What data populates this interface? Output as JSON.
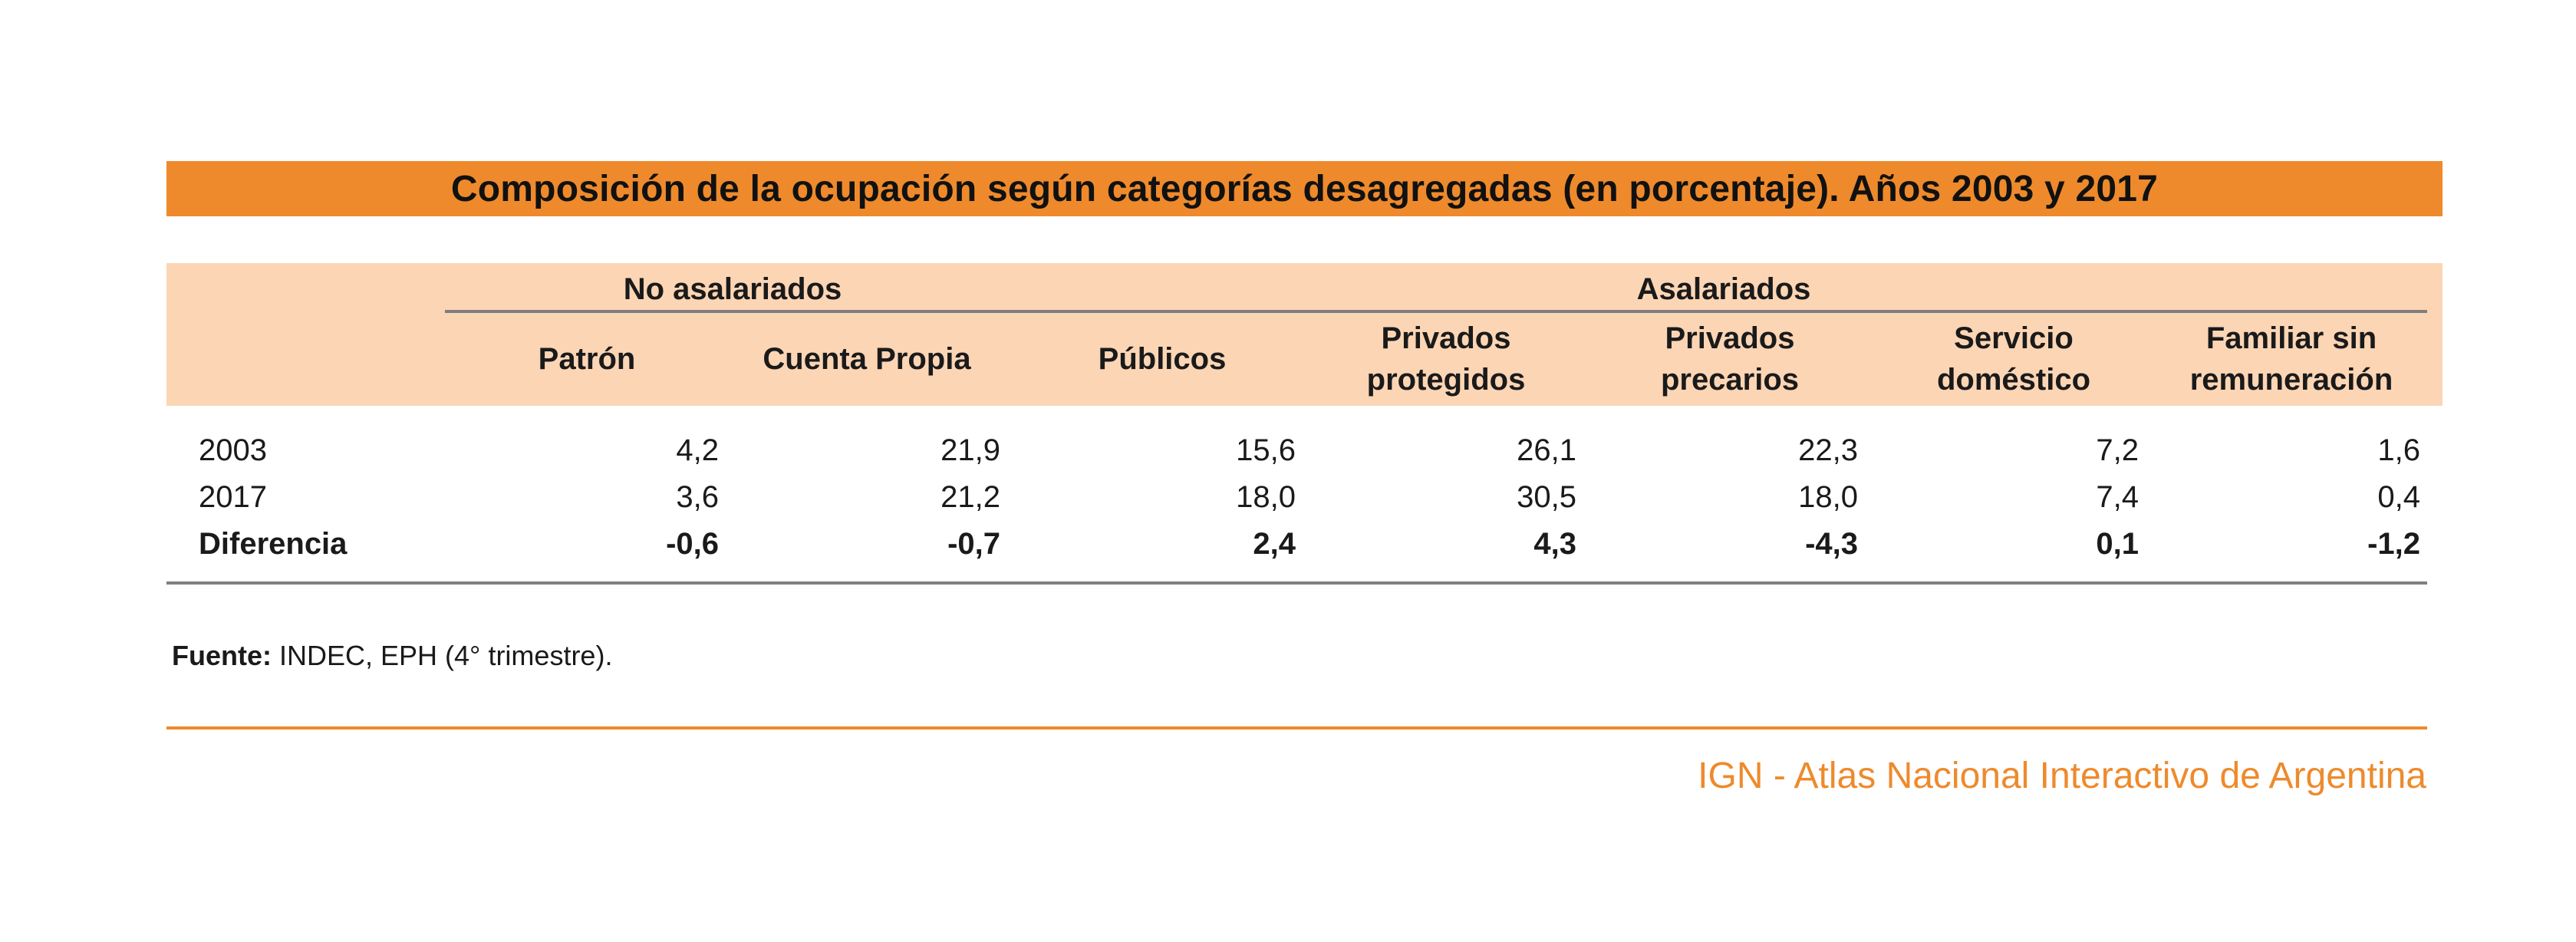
{
  "title": "Composición de la ocupación según categorías desagregadas (en porcentaje). Años 2003 y 2017",
  "groups": {
    "no_asalariados": "No asalariados",
    "asalariados": "Asalariados"
  },
  "columns": [
    [
      "Patrón"
    ],
    [
      "Cuenta Propia"
    ],
    [
      "Públicos"
    ],
    [
      "Privados",
      "protegidos"
    ],
    [
      "Privados",
      "precarios"
    ],
    [
      "Servicio",
      "doméstico"
    ],
    [
      "Familiar sin",
      "remuneración"
    ]
  ],
  "rows": [
    {
      "label": "2003",
      "bold": false,
      "values": [
        "4,2",
        "21,9",
        "15,6",
        "26,1",
        "22,3",
        "7,2",
        "1,6"
      ]
    },
    {
      "label": "2017",
      "bold": false,
      "values": [
        "3,6",
        "21,2",
        "18,0",
        "30,5",
        "18,0",
        "7,4",
        "0,4"
      ]
    },
    {
      "label": "Diferencia",
      "bold": true,
      "values": [
        "-0,6",
        "-0,7",
        "2,4",
        "4,3",
        "-4,3",
        "0,1",
        "-1,2"
      ]
    }
  ],
  "source": {
    "label": "Fuente:",
    "text": " INDEC, EPH (4° trimestre)."
  },
  "credit": "IGN - Atlas Nacional Interactivo de Argentina",
  "colors": {
    "accent": "#ee8a2c",
    "header_fill": "#fcd5b5",
    "rule": "#7f7f7f"
  }
}
